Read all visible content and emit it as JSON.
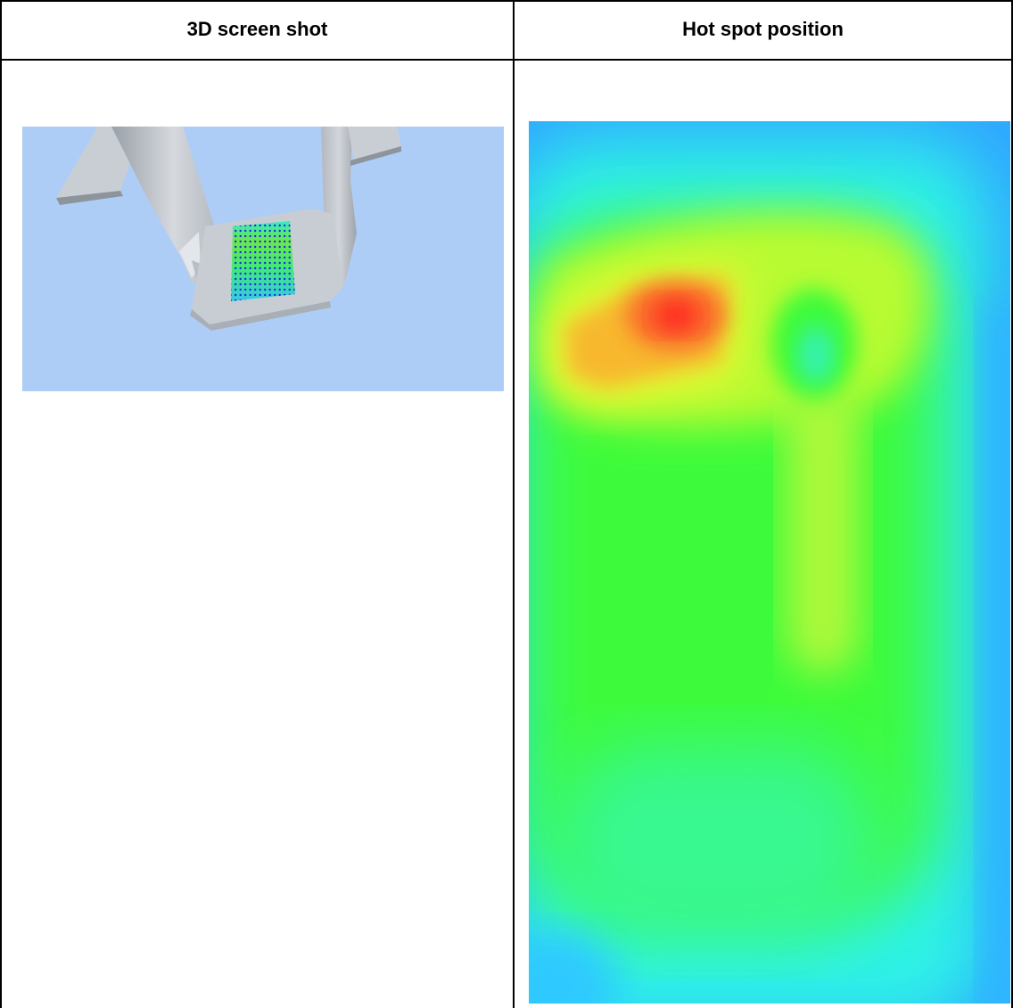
{
  "table": {
    "headers": [
      "3D screen shot",
      "Hot spot position"
    ]
  },
  "images": {
    "screenshot_3d": {
      "description_icon": "3d-model-screenshot",
      "background_color": "#aecdf6",
      "model_color": "#c7ccd2"
    },
    "heatmap": {
      "description_icon": "temperature-heatmap",
      "colors": {
        "cold": "#2fa8ff",
        "cyan": "#2ff7e4",
        "green": "#3dfb3a",
        "yellow": "#e6fb30",
        "orange": "#f9a230",
        "hot": "#ff2a22"
      }
    }
  }
}
